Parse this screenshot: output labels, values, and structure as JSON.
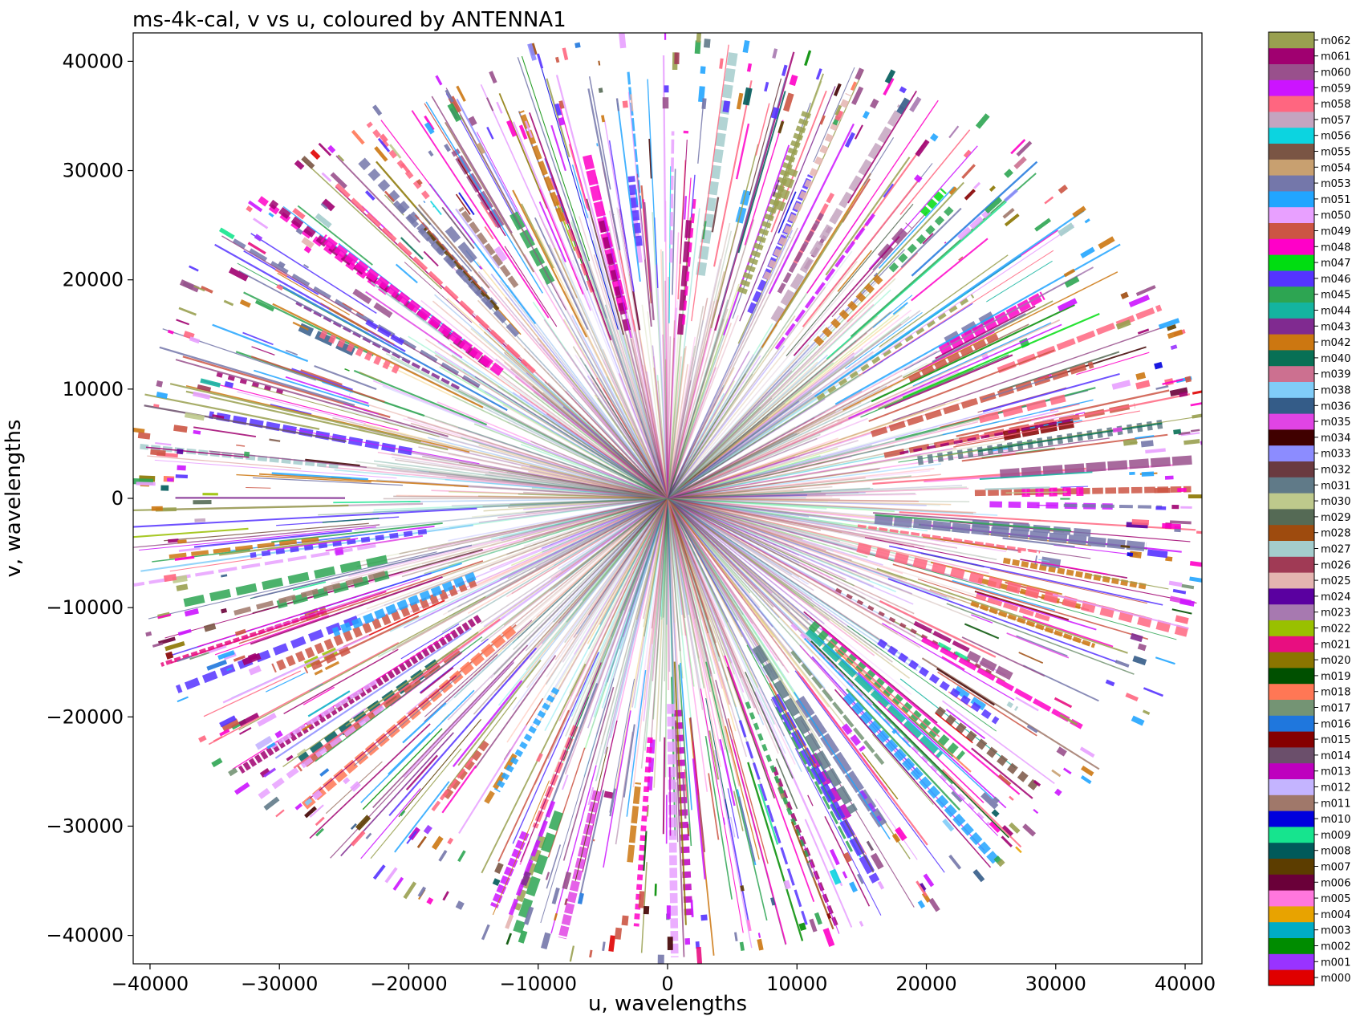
{
  "chart_data": {
    "type": "scatter",
    "title": "ms-4k-cal, v vs u, coloured by ANTENNA1",
    "xlabel": "u, wavelengths",
    "ylabel": "v, wavelengths",
    "xlim": [
      -41300,
      41300
    ],
    "ylim": [
      -42600,
      42600
    ],
    "x_ticks": [
      -40000,
      -30000,
      -20000,
      -10000,
      0,
      10000,
      20000,
      30000,
      40000
    ],
    "y_ticks": [
      -40000,
      -30000,
      -20000,
      -10000,
      0,
      10000,
      20000,
      30000,
      40000
    ],
    "x_tick_labels": [
      "−40000",
      "−30000",
      "−20000",
      "−10000",
      "0",
      "10000",
      "20000",
      "30000",
      "40000"
    ],
    "y_tick_labels": [
      "−40000",
      "−30000",
      "−20000",
      "−10000",
      "0",
      "10000",
      "20000",
      "30000",
      "40000"
    ],
    "grid": false,
    "legend_position": "right (colour bar)",
    "max_radius": 42000,
    "colorbar": {
      "labels": [
        "m000",
        "m001",
        "m002",
        "m003",
        "m004",
        "m005",
        "m006",
        "m007",
        "m008",
        "m009",
        "m010",
        "m011",
        "m012",
        "m013",
        "m014",
        "m015",
        "m016",
        "m017",
        "m018",
        "m019",
        "m020",
        "m021",
        "m022",
        "m023",
        "m024",
        "m025",
        "m026",
        "m027",
        "m028",
        "m029",
        "m030",
        "m031",
        "m032",
        "m033",
        "m034",
        "m035",
        "m036",
        "m038",
        "m039",
        "m040",
        "m042",
        "m043",
        "m044",
        "m045",
        "m046",
        "m047",
        "m048",
        "m049",
        "m050",
        "m051",
        "m053",
        "m054",
        "m055",
        "m056",
        "m057",
        "m058",
        "m059",
        "m060",
        "m061",
        "m062"
      ],
      "colors": [
        "#e00000",
        "#9933ff",
        "#008c00",
        "#00acc6",
        "#e8a300",
        "#ff77dd",
        "#6a0039",
        "#5c3d00",
        "#005a5a",
        "#16e48e",
        "#0000dd",
        "#a0786a",
        "#c4b4ff",
        "#be00be",
        "#6b4f6b",
        "#850000",
        "#1f77dd",
        "#749474",
        "#ff7755",
        "#005000",
        "#8b7500",
        "#e80e80",
        "#99c000",
        "#a779b0",
        "#5a00a0",
        "#e4b4b0",
        "#a03a55",
        "#a4cccc",
        "#9e4b0e",
        "#556a55",
        "#bec98c",
        "#607a88",
        "#6a3a40",
        "#8c8cff",
        "#400000",
        "#e044e4",
        "#345c88",
        "#80ccf8",
        "#cc7090",
        "#087055",
        "#cc7711",
        "#802a90",
        "#14b4a0",
        "#2da552",
        "#5533ff",
        "#00dd11",
        "#ff00c8",
        "#cc5544",
        "#e8a0ff",
        "#22a5ff",
        "#7477aa",
        "#c8a070",
        "#7a5544",
        "#0cd4e0",
        "#c4a4c0",
        "#ff6680",
        "#cc14ff",
        "#99508c",
        "#a00070",
        "#99a050"
      ]
    }
  }
}
